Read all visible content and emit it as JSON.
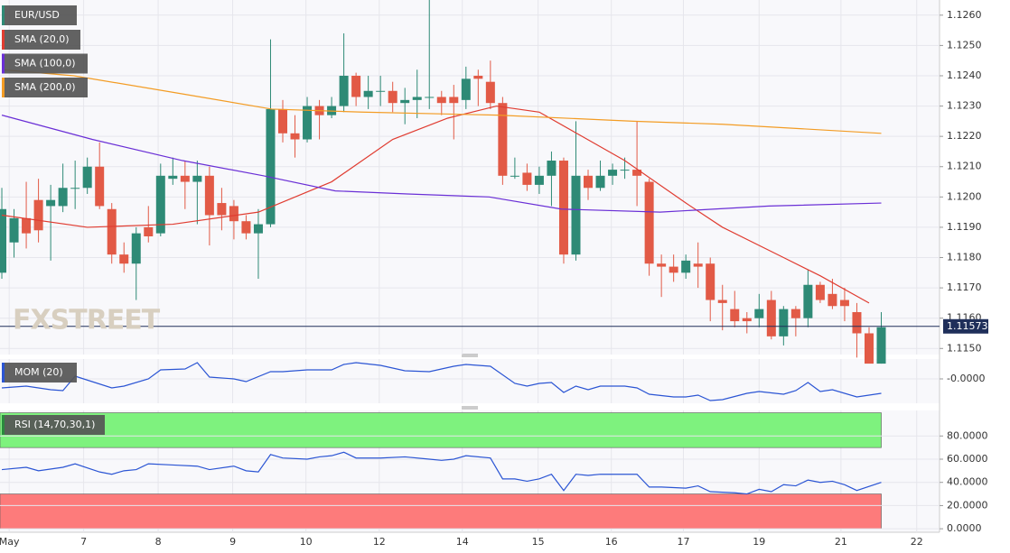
{
  "chart_data": {
    "type": "candlestick",
    "symbol": "EUR/USD",
    "watermark": "FXSTREET",
    "up_color": "#2e8a76",
    "down_color": "#e25a46",
    "open": [
      1.1175,
      1.1185,
      1.1193,
      1.1199,
      1.1197,
      1.1197,
      1.1203,
      1.1203,
      1.121,
      1.1196,
      1.1181,
      1.1178,
      1.119,
      1.1188,
      1.1206,
      1.1207,
      1.1205,
      1.1207,
      1.1198,
      1.1197,
      1.1192,
      1.1188,
      1.1191,
      1.1229,
      1.1221,
      1.1219,
      1.123,
      1.1227,
      1.123,
      1.124,
      1.1233,
      1.1235,
      1.1235,
      1.1231,
      1.1232,
      1.1233,
      1.1233,
      1.1233,
      1.1232,
      1.124,
      1.1238,
      1.1231,
      1.1207,
      1.1208,
      1.1204,
      1.1207,
      1.1212,
      1.1181,
      1.1207,
      1.1203,
      1.1207,
      1.1209,
      1.1209,
      1.1205,
      1.1178,
      1.1177,
      1.1175,
      1.1178,
      1.1178,
      1.1166,
      1.1163,
      1.116,
      1.116,
      1.1166,
      1.1154,
      1.1163,
      1.116,
      1.1171,
      1.1168,
      1.1166,
      1.1162,
      1.1155,
      1.1145
    ],
    "high": [
      1.1203,
      1.1196,
      1.1205,
      1.1206,
      1.1204,
      1.1211,
      1.1212,
      1.1213,
      1.1218,
      1.1198,
      1.1185,
      1.119,
      1.1197,
      1.1211,
      1.1213,
      1.1212,
      1.1212,
      1.121,
      1.1203,
      1.1199,
      1.1194,
      1.1196,
      1.1252,
      1.1232,
      1.1227,
      1.1233,
      1.1232,
      1.1233,
      1.1254,
      1.1241,
      1.124,
      1.124,
      1.1238,
      1.1236,
      1.1242,
      1.1265,
      1.1235,
      1.1237,
      1.1243,
      1.1242,
      1.1245,
      1.1233,
      1.1213,
      1.1211,
      1.121,
      1.1215,
      1.1213,
      1.1225,
      1.1209,
      1.1212,
      1.1211,
      1.1213,
      1.1225,
      1.1206,
      1.1181,
      1.1181,
      1.1181,
      1.1185,
      1.118,
      1.1171,
      1.1169,
      1.1162,
      1.1168,
      1.1169,
      1.1164,
      1.1164,
      1.1176,
      1.1172,
      1.1173,
      1.117,
      1.1165,
      1.1157,
      1.1162
    ],
    "low": [
      1.1173,
      1.118,
      1.1183,
      1.1185,
      1.1179,
      1.1195,
      1.1196,
      1.1201,
      1.1196,
      1.1178,
      1.1175,
      1.1166,
      1.1185,
      1.1187,
      1.1204,
      1.1196,
      1.1191,
      1.1184,
      1.1189,
      1.1186,
      1.1186,
      1.1173,
      1.119,
      1.1218,
      1.1213,
      1.1218,
      1.1219,
      1.1226,
      1.1228,
      1.123,
      1.1229,
      1.123,
      1.1228,
      1.1224,
      1.1226,
      1.1229,
      1.1227,
      1.1219,
      1.1229,
      1.123,
      1.1229,
      1.1204,
      1.1206,
      1.1202,
      1.1201,
      1.1197,
      1.1178,
      1.1179,
      1.1199,
      1.1202,
      1.1204,
      1.1206,
      1.1197,
      1.1174,
      1.1167,
      1.1172,
      1.1173,
      1.117,
      1.1159,
      1.1156,
      1.1157,
      1.1155,
      1.1157,
      1.1153,
      1.1151,
      1.1154,
      1.1157,
      1.1165,
      1.1163,
      1.1159,
      1.1147,
      1.1146,
      1.1145
    ],
    "close": [
      1.1196,
      1.1193,
      1.1188,
      1.1189,
      1.1199,
      1.1203,
      1.1203,
      1.121,
      1.1197,
      1.1181,
      1.1178,
      1.1188,
      1.1187,
      1.1207,
      1.1207,
      1.1205,
      1.1207,
      1.1194,
      1.1194,
      1.1192,
      1.1188,
      1.1191,
      1.1229,
      1.1221,
      1.1219,
      1.123,
      1.1227,
      1.123,
      1.124,
      1.1233,
      1.1235,
      1.1235,
      1.1231,
      1.1232,
      1.1233,
      1.1233,
      1.1231,
      1.1231,
      1.1239,
      1.1239,
      1.1231,
      1.1207,
      1.1207,
      1.1204,
      1.1207,
      1.1212,
      1.1181,
      1.1207,
      1.1203,
      1.1207,
      1.1209,
      1.1209,
      1.1207,
      1.1178,
      1.1177,
      1.1175,
      1.1179,
      1.1177,
      1.1166,
      1.1165,
      1.1159,
      1.1159,
      1.1163,
      1.1154,
      1.1163,
      1.116,
      1.1171,
      1.1166,
      1.1164,
      1.1164,
      1.1155,
      1.1145,
      1.1157
    ],
    "xlim": [
      -0.15,
      76.77
    ],
    "xticks": [
      {
        "value": 0.6,
        "label": "May"
      },
      {
        "value": 6.7,
        "label": "7"
      },
      {
        "value": 12.8,
        "label": "8"
      },
      {
        "value": 18.9,
        "label": "9"
      },
      {
        "value": 24.9,
        "label": "10"
      },
      {
        "value": 30.9,
        "label": "12"
      },
      {
        "value": 37.7,
        "label": "14"
      },
      {
        "value": 43.9,
        "label": "15"
      },
      {
        "value": 49.9,
        "label": "16"
      },
      {
        "value": 55.8,
        "label": "17"
      },
      {
        "value": 62,
        "label": "19"
      },
      {
        "value": 68.7,
        "label": "21"
      },
      {
        "value": 74.9,
        "label": "22"
      }
    ],
    "ylim": [
      1.1148,
      1.1265
    ],
    "yticks": [
      {
        "value": 1.115,
        "label": "1.1150"
      },
      {
        "value": 1.116,
        "label": "1.1160"
      },
      {
        "value": 1.117,
        "label": "1.1170"
      },
      {
        "value": 1.118,
        "label": "1.1180"
      },
      {
        "value": 1.119,
        "label": "1.1190"
      },
      {
        "value": 1.12,
        "label": "1.1200"
      },
      {
        "value": 1.121,
        "label": "1.1210"
      },
      {
        "value": 1.122,
        "label": "1.1220"
      },
      {
        "value": 1.123,
        "label": "1.1230"
      },
      {
        "value": 1.124,
        "label": "1.1240"
      },
      {
        "value": 1.125,
        "label": "1.1250"
      },
      {
        "value": 1.126,
        "label": "1.1260"
      }
    ],
    "last_price": 1.11573,
    "series": [
      {
        "name": "SMA (20,0)",
        "color": "#e03c31",
        "x": [
          0,
          7,
          14,
          21,
          27,
          32,
          36.5,
          40.5,
          44,
          47.5,
          51,
          56,
          59,
          64,
          67,
          71
        ],
        "values": [
          1.1194,
          1.119,
          1.1191,
          1.1195,
          1.1205,
          1.1219,
          1.1226,
          1.123,
          1.1228,
          1.122,
          1.1212,
          1.1198,
          1.119,
          1.118,
          1.1174,
          1.1165
        ]
      },
      {
        "name": "SMA (100,0)",
        "color": "#6a2fd6",
        "x": [
          0,
          7.4,
          14.8,
          21.4,
          27.3,
          33.2,
          39.9,
          45.8,
          53.9,
          62.8,
          72
        ],
        "values": [
          1.1227,
          1.1219,
          1.1212,
          1.1207,
          1.1202,
          1.1201,
          1.12,
          1.1196,
          1.1195,
          1.1197,
          1.1198
        ]
      },
      {
        "name": "SMA (200,0)",
        "color": "#f39c24",
        "x": [
          0,
          5.9,
          14.8,
          22.1,
          29.5,
          40.6,
          51.7,
          59,
          72
        ],
        "values": [
          1.1242,
          1.124,
          1.1234,
          1.1229,
          1.1228,
          1.1227,
          1.1225,
          1.1224,
          1.1221
        ]
      }
    ],
    "mom": {
      "name": "MOM (20)",
      "color": "#2b55d4",
      "ylim": [
        -0.0027,
        0.0022
      ],
      "yticks": [
        {
          "value": 0,
          "label": "-0.0000"
        }
      ],
      "x": [
        0,
        2,
        4,
        5,
        6,
        9,
        10,
        12,
        13,
        15,
        16,
        17,
        19,
        20,
        22,
        23,
        25,
        27,
        28,
        29,
        31,
        33,
        35,
        37,
        38,
        40,
        42,
        43,
        44,
        45,
        46,
        47,
        48,
        49,
        51,
        52,
        53,
        55,
        56,
        57,
        58,
        59,
        61,
        62,
        64,
        65,
        66,
        67,
        68,
        70,
        72
      ],
      "values": [
        -0.001,
        -0.0008,
        -0.0012,
        -0.0013,
        0.0003,
        -0.001,
        -0.0008,
        0,
        0.001,
        0.0011,
        0.0018,
        0.0002,
        0,
        -0.0003,
        0.0008,
        0.0008,
        0.001,
        0.001,
        0.0016,
        0.0018,
        0.0015,
        0.0009,
        0.0008,
        0.0014,
        0.0016,
        0.0014,
        -0.0005,
        -0.0008,
        -0.0005,
        -0.0004,
        -0.0015,
        -0.0008,
        -0.0012,
        -0.0008,
        -0.0008,
        -0.001,
        -0.0017,
        -0.002,
        -0.002,
        -0.0018,
        -0.0024,
        -0.0023,
        -0.0016,
        -0.0014,
        -0.0017,
        -0.0013,
        -0.0004,
        -0.0014,
        -0.0012,
        -0.002,
        -0.0016
      ]
    },
    "rsi": {
      "name": "RSI (14,70,30,1)",
      "color": "#2b55d4",
      "ylim": [
        -3,
        102
      ],
      "upper_band": [
        70,
        100
      ],
      "lower_band": [
        0,
        30
      ],
      "upper_color": "#7ef27e",
      "lower_color": "#fd7b7b",
      "yticks": [
        {
          "value": 0,
          "label": "0.0000"
        },
        {
          "value": 20,
          "label": "20.0000"
        },
        {
          "value": 40,
          "label": "40.0000"
        },
        {
          "value": 60,
          "label": "60.0000"
        },
        {
          "value": 80,
          "label": "80.0000"
        }
      ],
      "x": [
        0,
        2,
        3,
        5,
        6,
        8,
        9,
        10,
        11,
        12,
        14,
        16,
        17,
        19,
        20,
        21,
        22,
        23,
        25,
        26,
        27,
        28,
        29,
        31,
        33,
        35,
        36,
        37,
        38,
        40,
        41,
        42,
        43,
        44,
        45,
        46,
        47,
        48,
        49,
        51,
        52,
        53,
        54,
        56,
        57,
        58,
        60,
        61,
        62,
        63,
        64,
        65,
        66,
        67,
        68,
        69,
        70,
        72
      ],
      "values": [
        51,
        53,
        50,
        53,
        56,
        49,
        47,
        50,
        51,
        56,
        55,
        54,
        51,
        54,
        50,
        49,
        64,
        61,
        60,
        62,
        63,
        66,
        61,
        61,
        62,
        60,
        59,
        60,
        63,
        61,
        43,
        43,
        41,
        43,
        47,
        33,
        47,
        46,
        47,
        47,
        47,
        36,
        36,
        35,
        37,
        32,
        31,
        30,
        34,
        32,
        38,
        37,
        42,
        40,
        41,
        38,
        33,
        40
      ]
    }
  }
}
